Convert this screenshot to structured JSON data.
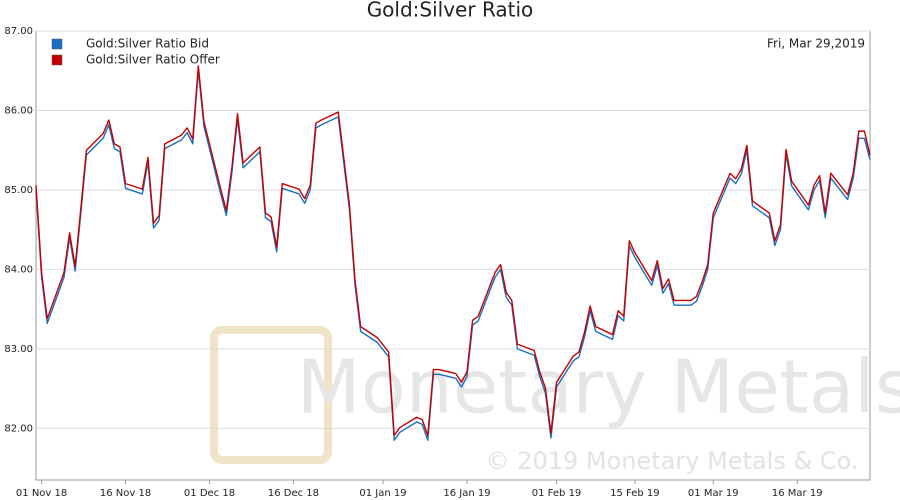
{
  "chart_data": {
    "type": "line",
    "title": "Gold:Silver Ratio",
    "annotation": "Fri, Mar 29,2019",
    "watermark": "Monetary Metals",
    "copyright": "© 2019 Monetary Metals & Co.",
    "legend": "upper left",
    "grid": true,
    "x": [
      "2018-10-31",
      "2018-11-01",
      "2018-11-02",
      "2018-11-05",
      "2018-11-06",
      "2018-11-07",
      "2018-11-08",
      "2018-11-09",
      "2018-11-12",
      "2018-11-13",
      "2018-11-14",
      "2018-11-15",
      "2018-11-16",
      "2018-11-19",
      "2018-11-20",
      "2018-11-21",
      "2018-11-22",
      "2018-11-23",
      "2018-11-26",
      "2018-11-27",
      "2018-11-28",
      "2018-11-29",
      "2018-11-30",
      "2018-12-03",
      "2018-12-04",
      "2018-12-05",
      "2018-12-06",
      "2018-12-07",
      "2018-12-10",
      "2018-12-11",
      "2018-12-12",
      "2018-12-13",
      "2018-12-14",
      "2018-12-17",
      "2018-12-18",
      "2018-12-19",
      "2018-12-20",
      "2018-12-21",
      "2018-12-24",
      "2018-12-26",
      "2018-12-27",
      "2018-12-28",
      "2018-12-31",
      "2019-01-02",
      "2019-01-03",
      "2019-01-04",
      "2019-01-07",
      "2019-01-08",
      "2019-01-09",
      "2019-01-10",
      "2019-01-11",
      "2019-01-14",
      "2019-01-15",
      "2019-01-16",
      "2019-01-17",
      "2019-01-18",
      "2019-01-21",
      "2019-01-22",
      "2019-01-23",
      "2019-01-24",
      "2019-01-25",
      "2019-01-28",
      "2019-01-29",
      "2019-01-30",
      "2019-01-31",
      "2019-02-01",
      "2019-02-04",
      "2019-02-05",
      "2019-02-06",
      "2019-02-07",
      "2019-02-08",
      "2019-02-11",
      "2019-02-12",
      "2019-02-13",
      "2019-02-14",
      "2019-02-15",
      "2019-02-18",
      "2019-02-19",
      "2019-02-20",
      "2019-02-21",
      "2019-02-22",
      "2019-02-25",
      "2019-02-26",
      "2019-02-27",
      "2019-02-28",
      "2019-03-01",
      "2019-03-04",
      "2019-03-05",
      "2019-03-06",
      "2019-03-07",
      "2019-03-08",
      "2019-03-11",
      "2019-03-12",
      "2019-03-13",
      "2019-03-14",
      "2019-03-15",
      "2019-03-18",
      "2019-03-19",
      "2019-03-20",
      "2019-03-21",
      "2019-03-22",
      "2019-03-25",
      "2019-03-26",
      "2019-03-27",
      "2019-03-28",
      "2019-03-29"
    ],
    "series": [
      {
        "name": "Gold:Silver Ratio Bid",
        "color": "#1b6fc2",
        "values": [
          85.0,
          83.9,
          83.32,
          83.9,
          84.4,
          83.98,
          84.7,
          85.44,
          85.65,
          85.82,
          85.52,
          85.48,
          85.02,
          84.95,
          85.35,
          84.52,
          84.62,
          85.52,
          85.63,
          85.72,
          85.58,
          86.5,
          85.8,
          84.95,
          84.68,
          85.22,
          85.9,
          85.28,
          85.48,
          84.65,
          84.6,
          84.22,
          85.02,
          84.95,
          84.83,
          85.0,
          85.78,
          85.82,
          85.92,
          84.75,
          83.8,
          83.22,
          83.08,
          82.9,
          81.85,
          81.95,
          82.08,
          82.05,
          81.85,
          82.68,
          82.68,
          82.63,
          82.52,
          82.65,
          83.3,
          83.35,
          83.9,
          84.0,
          83.65,
          83.55,
          83.0,
          82.92,
          82.65,
          82.45,
          81.88,
          82.52,
          82.85,
          82.9,
          83.15,
          83.48,
          83.22,
          83.12,
          83.42,
          83.35,
          84.3,
          84.15,
          83.8,
          84.05,
          83.7,
          83.82,
          83.55,
          83.55,
          83.6,
          83.78,
          84.0,
          84.65,
          85.15,
          85.08,
          85.2,
          85.5,
          84.8,
          84.65,
          84.3,
          84.5,
          85.45,
          85.05,
          84.75,
          85.0,
          85.12,
          84.65,
          85.15,
          84.88,
          85.15,
          85.65,
          85.65,
          85.38
        ]
      },
      {
        "name": "Gold:Silver Ratio Offer",
        "color": "#c40000",
        "values": [
          85.06,
          83.96,
          83.38,
          83.96,
          84.46,
          84.04,
          84.76,
          85.5,
          85.71,
          85.88,
          85.58,
          85.54,
          85.08,
          85.01,
          85.41,
          84.58,
          84.68,
          85.58,
          85.69,
          85.78,
          85.64,
          86.56,
          85.86,
          85.01,
          84.74,
          85.28,
          85.96,
          85.34,
          85.54,
          84.71,
          84.66,
          84.28,
          85.08,
          85.01,
          84.89,
          85.06,
          85.84,
          85.88,
          85.98,
          84.81,
          83.86,
          83.28,
          83.14,
          82.96,
          81.91,
          82.01,
          82.14,
          82.11,
          81.91,
          82.74,
          82.74,
          82.69,
          82.58,
          82.71,
          83.36,
          83.41,
          83.96,
          84.06,
          83.71,
          83.61,
          83.06,
          82.98,
          82.71,
          82.51,
          81.94,
          82.58,
          82.91,
          82.96,
          83.21,
          83.54,
          83.28,
          83.18,
          83.48,
          83.41,
          84.36,
          84.21,
          83.86,
          84.11,
          83.76,
          83.88,
          83.61,
          83.61,
          83.66,
          83.84,
          84.06,
          84.71,
          85.21,
          85.14,
          85.26,
          85.56,
          84.86,
          84.71,
          84.36,
          84.56,
          85.51,
          85.11,
          84.81,
          85.06,
          85.18,
          84.71,
          85.21,
          84.94,
          85.21,
          85.74,
          85.74,
          85.44
        ]
      }
    ],
    "xlim": [
      "2018-10-31",
      "2019-03-29"
    ],
    "xticks": [
      {
        "value": "2018-11-01",
        "label": "01 Nov 18"
      },
      {
        "value": "2018-11-16",
        "label": "16 Nov 18"
      },
      {
        "value": "2018-12-01",
        "label": "01 Dec 18"
      },
      {
        "value": "2018-12-16",
        "label": "16 Dec 18"
      },
      {
        "value": "2019-01-01",
        "label": "01 Jan 19"
      },
      {
        "value": "2019-01-16",
        "label": "16 Jan 19"
      },
      {
        "value": "2019-02-01",
        "label": "01 Feb 19"
      },
      {
        "value": "2019-02-15",
        "label": "15 Feb 19"
      },
      {
        "value": "2019-03-01",
        "label": "01 Mar 19"
      },
      {
        "value": "2019-03-16",
        "label": "16 Mar 19"
      }
    ],
    "ylim": [
      81.35,
      87.0
    ],
    "yticks": [
      {
        "value": 82,
        "label": "82.00"
      },
      {
        "value": 83,
        "label": "83.00"
      },
      {
        "value": 84,
        "label": "84.00"
      },
      {
        "value": 85,
        "label": "85.00"
      },
      {
        "value": 86,
        "label": "86.00"
      },
      {
        "value": 87,
        "label": "87.00"
      }
    ]
  }
}
